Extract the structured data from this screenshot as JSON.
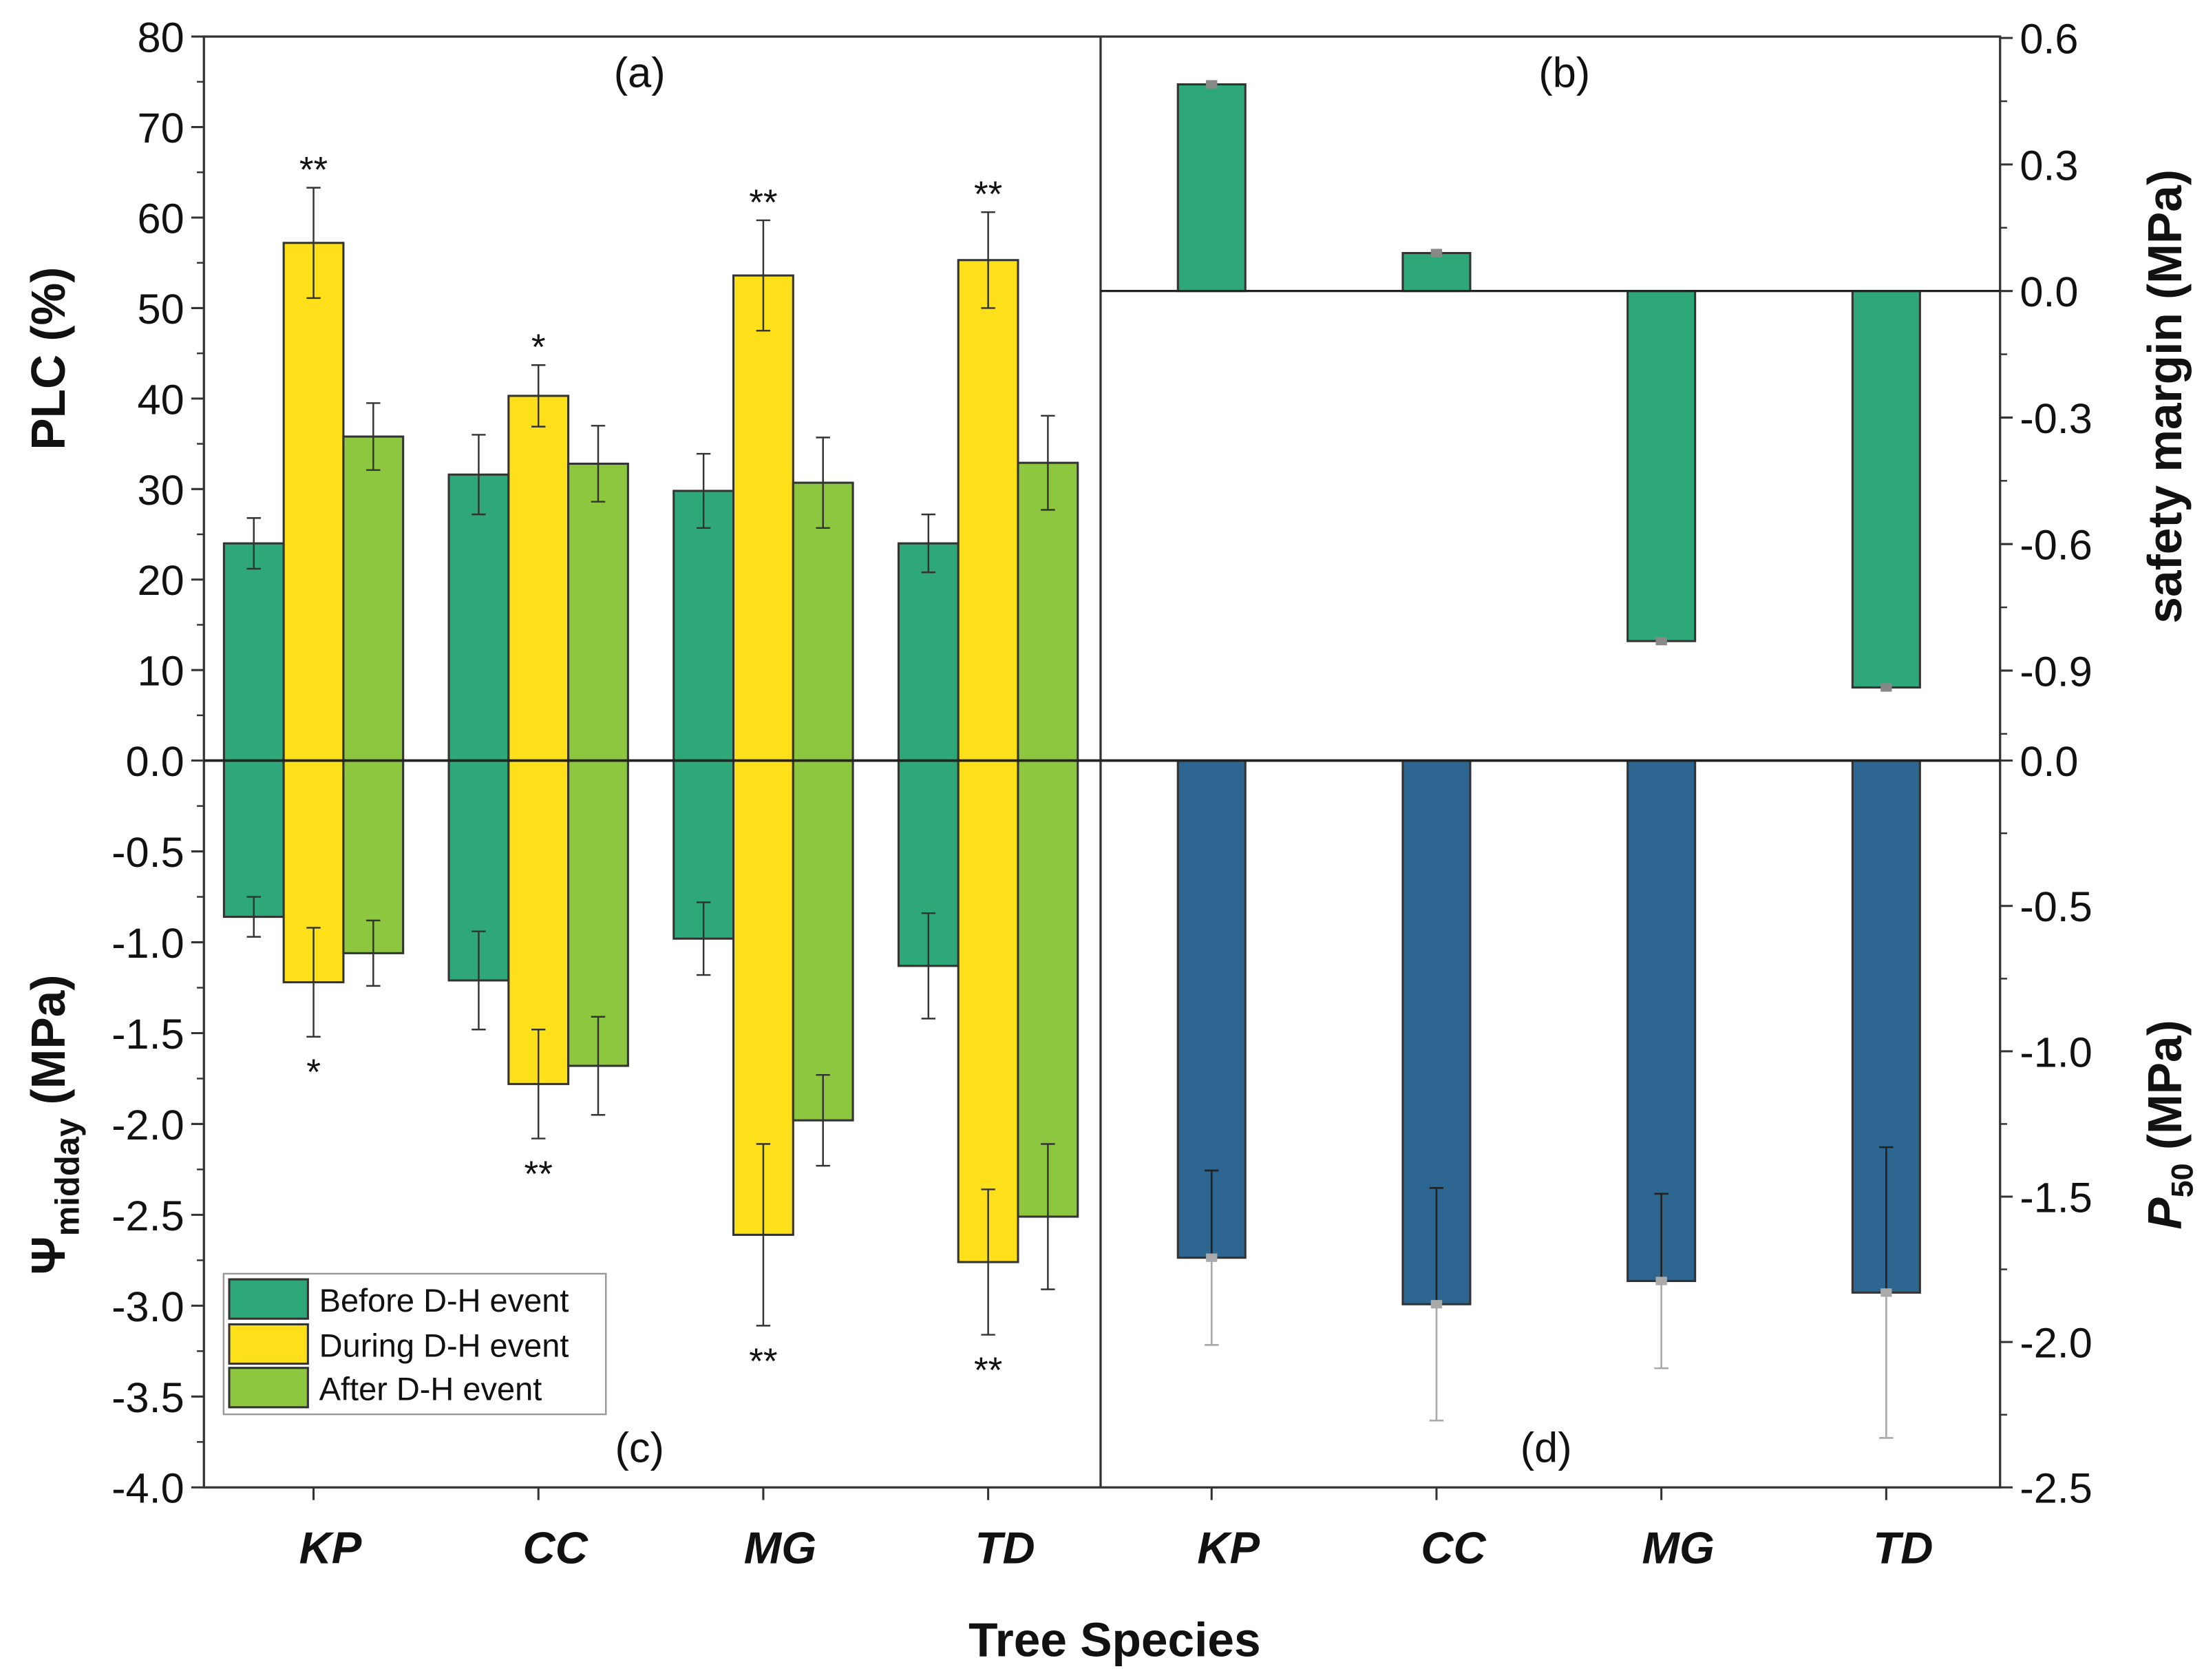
{
  "chart_data": [
    {
      "panel": "(a)",
      "type": "bar",
      "ylabel": "PLC (%)",
      "ylim": [
        0,
        80
      ],
      "yticks": [
        "80",
        "70",
        "60",
        "50",
        "40",
        "30",
        "20",
        "10",
        "0.0"
      ],
      "categories": [
        "KP",
        "CC",
        "MG",
        "TD"
      ],
      "series": [
        {
          "name": "Before D-H event",
          "color": "#2ea878",
          "values": [
            24.0,
            31.6,
            29.8,
            24.0
          ],
          "errors": [
            2.8,
            4.4,
            4.1,
            3.2
          ],
          "stars": [
            "",
            "",
            "",
            ""
          ]
        },
        {
          "name": "During D-H event",
          "color": "#fde01a",
          "values": [
            57.2,
            40.3,
            53.6,
            55.3
          ],
          "errors": [
            6.1,
            3.4,
            6.1,
            5.3
          ],
          "stars": [
            "**",
            "*",
            "**",
            "**"
          ]
        },
        {
          "name": "After D-H event",
          "color": "#8dc63f",
          "values": [
            35.8,
            32.8,
            30.7,
            32.9
          ],
          "errors": [
            3.7,
            4.2,
            5.0,
            5.2
          ],
          "stars": [
            "",
            "",
            "",
            ""
          ]
        }
      ]
    },
    {
      "panel": "(b)",
      "type": "bar",
      "ylabel": "safety margin (MPa)",
      "ylim": [
        -1.11,
        0.6
      ],
      "yticks": [
        "0.6",
        "0.3",
        "0.0",
        "-0.3",
        "-0.6",
        "-0.9"
      ],
      "categories": [
        "KP",
        "CC",
        "MG",
        "TD"
      ],
      "series": [
        {
          "name": "safety margin",
          "color": "#2ea878",
          "values": [
            0.49,
            0.09,
            -0.83,
            -0.94
          ],
          "errors": [
            0.006,
            0.006,
            0.006,
            0.006
          ]
        }
      ]
    },
    {
      "panel": "(c)",
      "type": "bar",
      "ylabel": "Ψ",
      "ylabel_sub": "midday",
      "ylabel_unit": " (MPa)",
      "ylim": [
        -4.0,
        0
      ],
      "yticks": [
        "-0.5",
        "-1.0",
        "-1.5",
        "-2.0",
        "-2.5",
        "-3.0",
        "-3.5",
        "-4.0"
      ],
      "categories": [
        "KP",
        "CC",
        "MG",
        "TD"
      ],
      "series": [
        {
          "name": "Before D-H event",
          "color": "#2ea878",
          "values": [
            -0.86,
            -1.21,
            -0.98,
            -1.13
          ],
          "errors": [
            0.11,
            0.27,
            0.2,
            0.29
          ],
          "stars": [
            "",
            "",
            "",
            ""
          ]
        },
        {
          "name": "During D-H event",
          "color": "#fde01a",
          "values": [
            -1.22,
            -1.78,
            -2.61,
            -2.76
          ],
          "errors": [
            0.3,
            0.3,
            0.5,
            0.4
          ],
          "stars": [
            "*",
            "**",
            "**",
            "**"
          ]
        },
        {
          "name": "After D-H event",
          "color": "#8dc63f",
          "values": [
            -1.06,
            -1.68,
            -1.98,
            -2.51
          ],
          "errors": [
            0.18,
            0.27,
            0.25,
            0.4
          ],
          "stars": [
            "",
            "",
            "",
            ""
          ]
        }
      ]
    },
    {
      "panel": "(d)",
      "type": "bar",
      "ylabel": "P",
      "ylabel_sub": "50",
      "ylabel_unit": " (MPa)",
      "ylim": [
        -2.5,
        0
      ],
      "yticks": [
        "0.0",
        "-0.5",
        "-1.0",
        "-1.5",
        "-2.0",
        "-2.5"
      ],
      "categories": [
        "KP",
        "CC",
        "MG",
        "TD"
      ],
      "series": [
        {
          "name": "P50",
          "color": "#2d6690",
          "values": [
            -1.71,
            -1.87,
            -1.79,
            -1.83
          ],
          "errors": [
            0.3,
            0.4,
            0.3,
            0.5
          ]
        }
      ]
    }
  ],
  "xlabel": "Tree Species",
  "legend": [
    "Before D-H event",
    "During D-H event",
    "After D-H event"
  ],
  "legend_position": "bottom-left of panel (c)"
}
